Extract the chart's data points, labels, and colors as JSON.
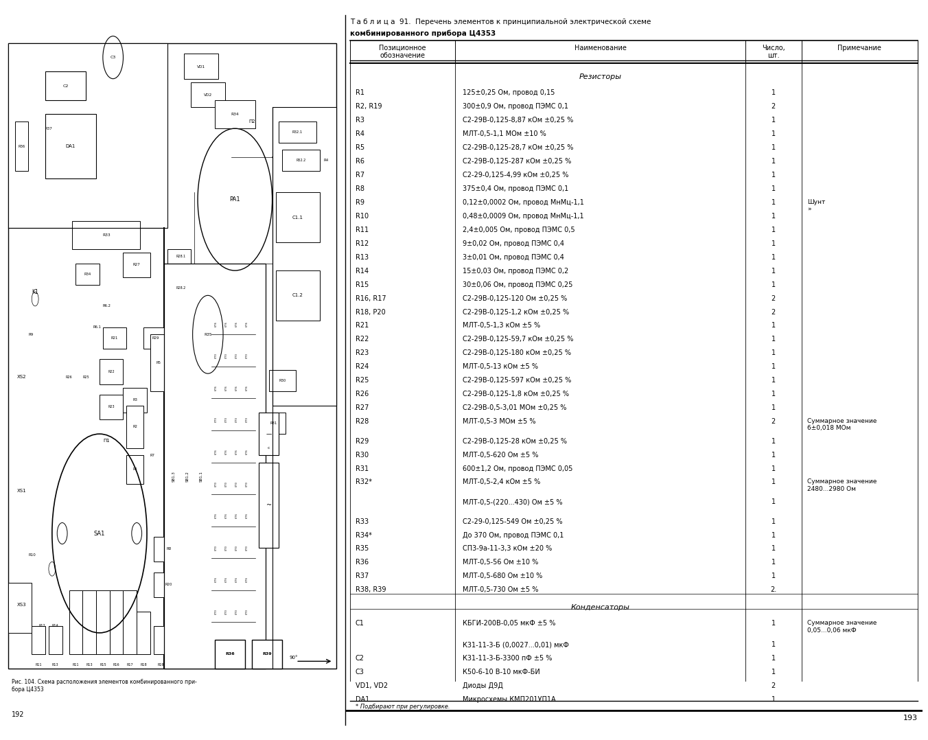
{
  "page_bg": "#ffffff",
  "left_page_num": "192",
  "right_page_num": "193",
  "fig_caption": "Рис. 104. Схема расположения элементов комбинированного при-\nбора Ц4353",
  "table_title_line1": "Т а б л и ц а  91.  Перечень элементов к принципиальной электрической схеме",
  "table_title_line2": "комбинированного прибора Ц4353",
  "col_headers": [
    "Позиционное\nобозначение",
    "Наименование",
    "Число,\nшт.",
    "Примечание"
  ],
  "section_resistors": "Резисторы",
  "section_capacitors": "Конденсаторы",
  "footnote": "* Подбирают при регулировке.",
  "rows": [
    {
      "pos": "R1",
      "name": "125±0,25 Ом, провод 0,15",
      "qty": "1",
      "note": ""
    },
    {
      "pos": "R2, R19",
      "name": "300±0,9 Ом, провод ПЭМС 0,1",
      "qty": "2",
      "note": ""
    },
    {
      "pos": "R3",
      "name": "С2-29В-0,125-8,87 кОм ±0,25 %",
      "qty": "1",
      "note": ""
    },
    {
      "pos": "R4",
      "name": "МЛТ-0,5-1,1 МОм ±10 %",
      "qty": "1",
      "note": ""
    },
    {
      "pos": "R5",
      "name": "С2-29В-0,125-28,7 кОм ±0,25 %",
      "qty": "1",
      "note": ""
    },
    {
      "pos": "R6",
      "name": "С2-29В-0,125-287 кОм ±0,25 %",
      "qty": "1",
      "note": ""
    },
    {
      "pos": "R7",
      "name": "С2-29-0,125-4,99 кОм ±0,25 %",
      "qty": "1",
      "note": ""
    },
    {
      "pos": "R8",
      "name": "375±0,4 Ом, провод ПЭМС 0,1",
      "qty": "1",
      "note": ""
    },
    {
      "pos": "R9",
      "name": "0,12±0,0002 Ом, провод МнМц-1,1",
      "qty": "1",
      "note": "Шунт\n»"
    },
    {
      "pos": "R10",
      "name": "0,48±0,0009 Ом, провод МнМц-1,1",
      "qty": "1",
      "note": ""
    },
    {
      "pos": "R11",
      "name": "2,4±0,005 Ом, провод ПЭМС 0,5",
      "qty": "1",
      "note": ""
    },
    {
      "pos": "R12",
      "name": "9±0,02 Ом, провод ПЭМС 0,4",
      "qty": "1",
      "note": ""
    },
    {
      "pos": "R13",
      "name": "3±0,01 Ом, провод ПЭМС 0,4",
      "qty": "1",
      "note": ""
    },
    {
      "pos": "R14",
      "name": "15±0,03 Ом, провод ПЭМС 0,2",
      "qty": "1",
      "note": ""
    },
    {
      "pos": "R15",
      "name": "30±0,06 Ом, провод ПЭМС 0,25",
      "qty": "1",
      "note": ""
    },
    {
      "pos": "R16, R17",
      "name": "С2-29В-0,125-120 Ом ±0,25 %",
      "qty": "2",
      "note": ""
    },
    {
      "pos": "R18, Р20",
      "name": "С2-29В-0,125-1,2 кОм ±0,25 %",
      "qty": "2",
      "note": ""
    },
    {
      "pos": "R21",
      "name": "МЛТ-0,5-1,3 кОм ±5 %",
      "qty": "1",
      "note": ""
    },
    {
      "pos": "R22",
      "name": "С2-29В-0,125-59,7 кОм ±0,25 %",
      "qty": "1",
      "note": ""
    },
    {
      "pos": "R23",
      "name": "С2-29В-0,125-180 кОм ±0,25 %",
      "qty": "1",
      "note": ""
    },
    {
      "pos": "R24",
      "name": "МЛТ-0,5-13 кОм ±5 %",
      "qty": "1",
      "note": ""
    },
    {
      "pos": "R25",
      "name": "С2-29В-0,125-597 кОм ±0,25 %",
      "qty": "1",
      "note": ""
    },
    {
      "pos": "R26",
      "name": "С2-29В-0,125-1,8 кОм ±0,25 %",
      "qty": "1",
      "note": ""
    },
    {
      "pos": "R27",
      "name": "С2-29В-0,5-3,01 МОм ±0,25 %",
      "qty": "1",
      "note": ""
    },
    {
      "pos": "R28",
      "name": "МЛТ-0,5-3 МОм ±5 %",
      "qty": "2",
      "note": "Суммарное значение\n6±0,018 МОм"
    },
    {
      "pos": "R29",
      "name": "С2-29В-0,125-28 кОм ±0,25 %",
      "qty": "1",
      "note": ""
    },
    {
      "pos": "R30",
      "name": "МЛТ-0,5-620 Ом ±5 %",
      "qty": "1",
      "note": ""
    },
    {
      "pos": "R31",
      "name": "600±1,2 Ом, провод ПЭМС 0,05",
      "qty": "1",
      "note": ""
    },
    {
      "pos": "R32*",
      "name": "МЛТ-0,5-2,4 кОм ±5 %",
      "qty": "1",
      "note": "Суммарное значение\n2480...2980 Ом"
    },
    {
      "pos": "",
      "name": "МЛТ-0,5-(220...430) Ом ±5 %",
      "qty": "1",
      "note": ""
    },
    {
      "pos": "R33",
      "name": "С2-29-0,125-549 Ом ±0,25 %",
      "qty": "1",
      "note": ""
    },
    {
      "pos": "R34*",
      "name": "До 370 Ом, провод ПЭМС 0,1",
      "qty": "1",
      "note": ""
    },
    {
      "pos": "R35",
      "name": "СП3-9а-11-3,3 кОм ±20 %",
      "qty": "1",
      "note": ""
    },
    {
      "pos": "R36",
      "name": "МЛТ-0,5-56 Ом ±10 %",
      "qty": "1",
      "note": ""
    },
    {
      "pos": "R37",
      "name": "МЛТ-0,5-680 Ом ±10 %",
      "qty": "1",
      "note": ""
    },
    {
      "pos": "R38, R39",
      "name": "МЛТ-0,5-730 Ом ±5 %",
      "qty": "2.",
      "note": ""
    }
  ],
  "cap_rows": [
    {
      "pos": "C1",
      "name": "КБГИ-200В-0,05 мкФ ±5 %",
      "qty": "1",
      "note": "Суммарное значение\n0,05...0,06 мкФ"
    },
    {
      "pos": "",
      "name": "К31-11-3-Б (0,0027...0,01) мкФ",
      "qty": "1",
      "note": ""
    },
    {
      "pos": "C2",
      "name": "К31-11-3-Б-3300 пФ ±5 %",
      "qty": "1",
      "note": ""
    },
    {
      "pos": "C3",
      "name": "К50-6-10 В-10 мкФ-БИ",
      "qty": "1",
      "note": ""
    },
    {
      "pos": "VD1, VD2",
      "name": "Диоды Д9Д",
      "qty": "2",
      "note": ""
    },
    {
      "pos": "DA1",
      "name": "Микросхемы КМП201УП1А",
      "qty": "1",
      "note": ""
    }
  ]
}
